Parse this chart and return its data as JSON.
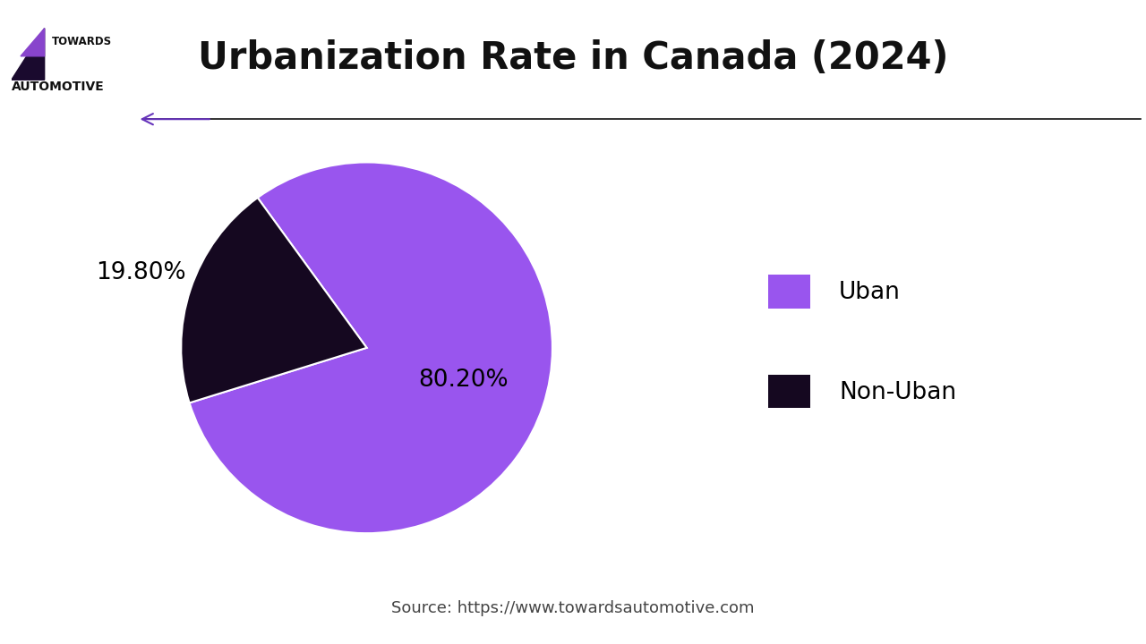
{
  "title": "Urbanization Rate in Canada (2024)",
  "slices": [
    80.2,
    19.8
  ],
  "labels": [
    "Uban",
    "Non-Uban"
  ],
  "colors": [
    "#9955ee",
    "#150820"
  ],
  "pct_labels": [
    "80.20%",
    "19.80%"
  ],
  "source_text": "Source: https://www.towardsautomotive.com",
  "background_color": "#ffffff",
  "title_fontsize": 30,
  "legend_fontsize": 19,
  "source_fontsize": 13,
  "pct_fontsize_in": 19,
  "pct_fontsize_out": 19,
  "arrow_color": "#6633BB",
  "line_color": "#111111",
  "separator_color": "#5522aa",
  "start_angle": 126,
  "logo_text_towards": "TOWARDS",
  "logo_text_auto": "AUTOMOTIVE"
}
